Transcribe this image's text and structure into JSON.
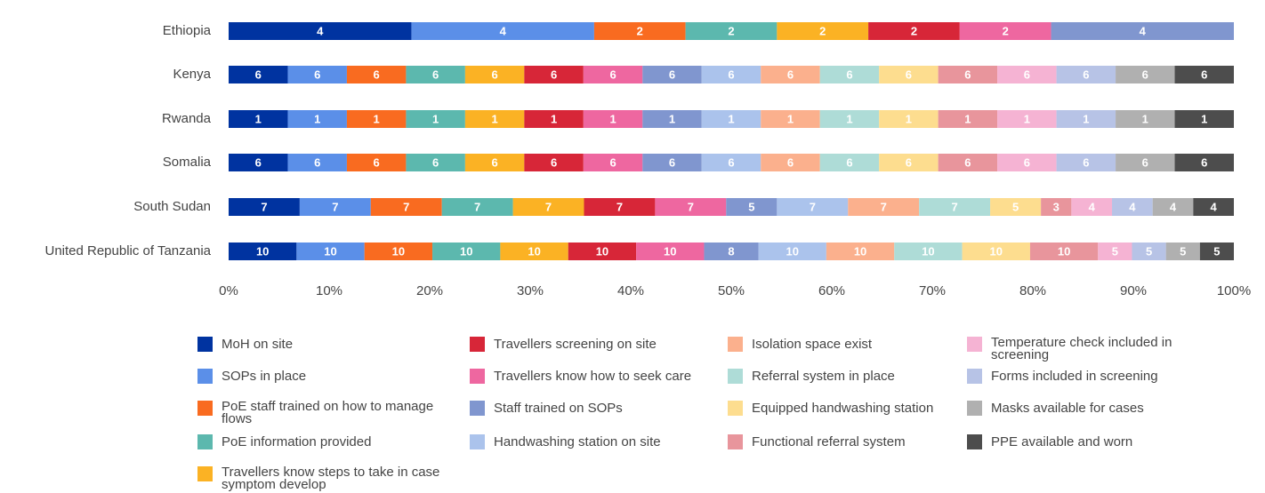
{
  "chart_data": {
    "type": "bar",
    "orientation": "horizontal",
    "stacking": "percent",
    "categories": [
      "Ethiopia",
      "Kenya",
      "Rwanda",
      "Somalia",
      "South Sudan",
      "United Republic of Tanzania"
    ],
    "xlim": [
      0,
      100
    ],
    "xticks": [
      {
        "value": 0,
        "label": "0%"
      },
      {
        "value": 10,
        "label": "10%"
      },
      {
        "value": 20,
        "label": "20%"
      },
      {
        "value": 30,
        "label": "30%"
      },
      {
        "value": 40,
        "label": "40%"
      },
      {
        "value": 50,
        "label": "50%"
      },
      {
        "value": 60,
        "label": "60%"
      },
      {
        "value": 70,
        "label": "70%"
      },
      {
        "value": 80,
        "label": "80%"
      },
      {
        "value": 90,
        "label": "90%"
      },
      {
        "value": 100,
        "label": "100%"
      }
    ],
    "series": [
      {
        "name": "MoH on site",
        "color": "#0033a0",
        "values": [
          4,
          6,
          1,
          6,
          7,
          10
        ]
      },
      {
        "name": "SOPs in place",
        "color": "#5b8fe8",
        "values": [
          4,
          6,
          1,
          6,
          7,
          10
        ]
      },
      {
        "name": "PoE staff trained on how to manage flows",
        "color": "#f96b20",
        "values": [
          2,
          6,
          1,
          6,
          7,
          10
        ]
      },
      {
        "name": "PoE information provided",
        "color": "#5cb8ae",
        "values": [
          2,
          6,
          1,
          6,
          7,
          10
        ]
      },
      {
        "name": "Travellers know steps to take in case symptom develop",
        "color": "#fbb224",
        "values": [
          2,
          6,
          1,
          6,
          7,
          10
        ]
      },
      {
        "name": "Travellers screening on site",
        "color": "#d72638",
        "values": [
          2,
          6,
          1,
          6,
          7,
          10
        ]
      },
      {
        "name": "Travellers know how to seek care",
        "color": "#ee67a0",
        "values": [
          2,
          6,
          1,
          6,
          7,
          10
        ]
      },
      {
        "name": "Staff trained on SOPs",
        "color": "#8096cf",
        "values": [
          4,
          6,
          1,
          6,
          5,
          8
        ]
      },
      {
        "name": "Handwashing station on site",
        "color": "#abc3ec",
        "values": [
          0,
          6,
          1,
          6,
          7,
          10
        ]
      },
      {
        "name": "Isolation space exist",
        "color": "#fbb08d",
        "values": [
          0,
          6,
          1,
          6,
          7,
          10
        ]
      },
      {
        "name": "Referral system in place",
        "color": "#aedcd7",
        "values": [
          0,
          6,
          1,
          6,
          7,
          10
        ]
      },
      {
        "name": "Equipped handwashing station",
        "color": "#fddd8f",
        "values": [
          0,
          6,
          1,
          6,
          5,
          10
        ]
      },
      {
        "name": "Functional referral system",
        "color": "#e8959c",
        "values": [
          0,
          6,
          1,
          6,
          3,
          10
        ]
      },
      {
        "name": "Temperature check included in screening",
        "color": "#f5b3d3",
        "values": [
          0,
          6,
          1,
          6,
          4,
          5
        ]
      },
      {
        "name": "Forms included in screening",
        "color": "#b7c3e6",
        "values": [
          0,
          6,
          1,
          6,
          4,
          5
        ]
      },
      {
        "name": "Masks available for cases",
        "color": "#b0b0b0",
        "values": [
          0,
          6,
          1,
          6,
          4,
          5
        ]
      },
      {
        "name": "PPE available and worn",
        "color": "#4d4d4d",
        "values": [
          0,
          6,
          1,
          6,
          4,
          5
        ]
      }
    ]
  }
}
